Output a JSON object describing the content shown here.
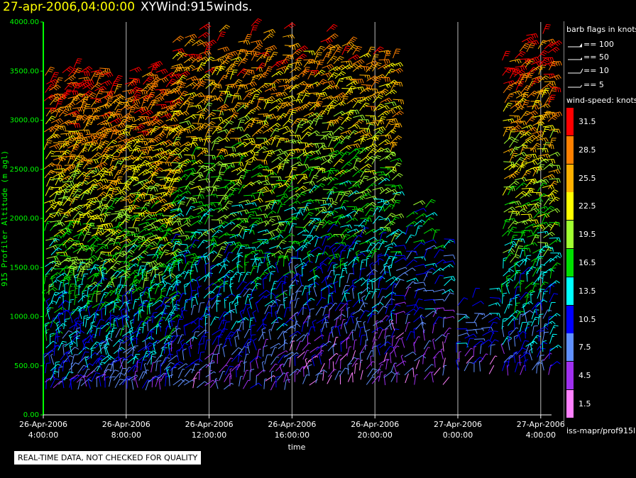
{
  "title": {
    "date": "27-apr-2006,04:00:00",
    "name": "XYWind:915winds."
  },
  "notice": "REAL-TIME DATA, NOT CHECKED FOR QUALITY",
  "source": "iss-mapr/prof915l",
  "legend": {
    "flags_title": "barb flags in knots",
    "flags": [
      {
        "label": "== 100"
      },
      {
        "label": "== 50"
      },
      {
        "label": "== 10"
      },
      {
        "label": "== 5"
      }
    ],
    "speed_title": "wind-speed: knots",
    "scale": [
      {
        "label": "31.5",
        "color": "#ff0000"
      },
      {
        "label": "28.5",
        "color": "#ff8000"
      },
      {
        "label": "25.5",
        "color": "#ffb000"
      },
      {
        "label": "22.5",
        "color": "#ffff00"
      },
      {
        "label": "19.5",
        "color": "#a0ff30"
      },
      {
        "label": "16.5",
        "color": "#00e000"
      },
      {
        "label": "13.5",
        "color": "#00ffff"
      },
      {
        "label": "10.5",
        "color": "#0000ff"
      },
      {
        "label": "7.5",
        "color": "#6090ff"
      },
      {
        "label": "4.5",
        "color": "#a030f0"
      },
      {
        "label": "1.5",
        "color": "#ff80ff"
      }
    ]
  },
  "chart_data": {
    "type": "scatter",
    "xlabel": "time",
    "ylabel": "915 Profiler Altitude (m agl)",
    "ylim": [
      0,
      4000
    ],
    "yticks": [
      "0.00",
      "500.00",
      "1000.00",
      "1500.00",
      "2000.00",
      "2500.00",
      "3000.00",
      "3500.00",
      "4000.00"
    ],
    "xlim_hours": [
      0,
      24.4
    ],
    "xticks": [
      {
        "line1": "26-Apr-2006",
        "line2": "4:00:00",
        "hour": 0
      },
      {
        "line1": "26-Apr-2006",
        "line2": "8:00:00",
        "hour": 4
      },
      {
        "line1": "26-Apr-2006",
        "line2": "12:00:00",
        "hour": 8
      },
      {
        "line1": "26-Apr-2006",
        "line2": "16:00:00",
        "hour": 12
      },
      {
        "line1": "26-Apr-2006",
        "line2": "20:00:00",
        "hour": 16
      },
      {
        "line1": "27-Apr-2006",
        "line2": "0:00:00",
        "hour": 20
      },
      {
        "line1": "27-Apr-2006",
        "line2": "4:00:00",
        "hour": 24
      }
    ],
    "grid_x": true,
    "series": [
      {
        "hour_start": 0.1,
        "hour_end": 6.1,
        "profiles": 28,
        "alt_min": 250,
        "alt_max": 3600,
        "speed_low": 8,
        "speed_high": 32
      },
      {
        "hour_start": 6.2,
        "hour_end": 11.6,
        "profiles": 18,
        "alt_min": 250,
        "alt_max": 4000,
        "speed_low": 6,
        "speed_high": 30
      },
      {
        "hour_start": 11.9,
        "hour_end": 16.8,
        "profiles": 17,
        "alt_min": 300,
        "alt_max": 4000,
        "speed_low": 4,
        "speed_high": 30
      },
      {
        "hour_start": 17.0,
        "hour_end": 19.3,
        "profiles": 6,
        "alt_min": 300,
        "alt_max": 2200,
        "speed_low": 3,
        "speed_high": 16
      },
      {
        "hour_start": 20.0,
        "hour_end": 21.5,
        "profiles": 5,
        "alt_min": 400,
        "alt_max": 1300,
        "speed_low": 5,
        "speed_high": 14
      },
      {
        "hour_start": 22.2,
        "hour_end": 24.4,
        "profiles": 9,
        "alt_min": 400,
        "alt_max": 3950,
        "speed_low": 8,
        "speed_high": 32
      }
    ]
  }
}
